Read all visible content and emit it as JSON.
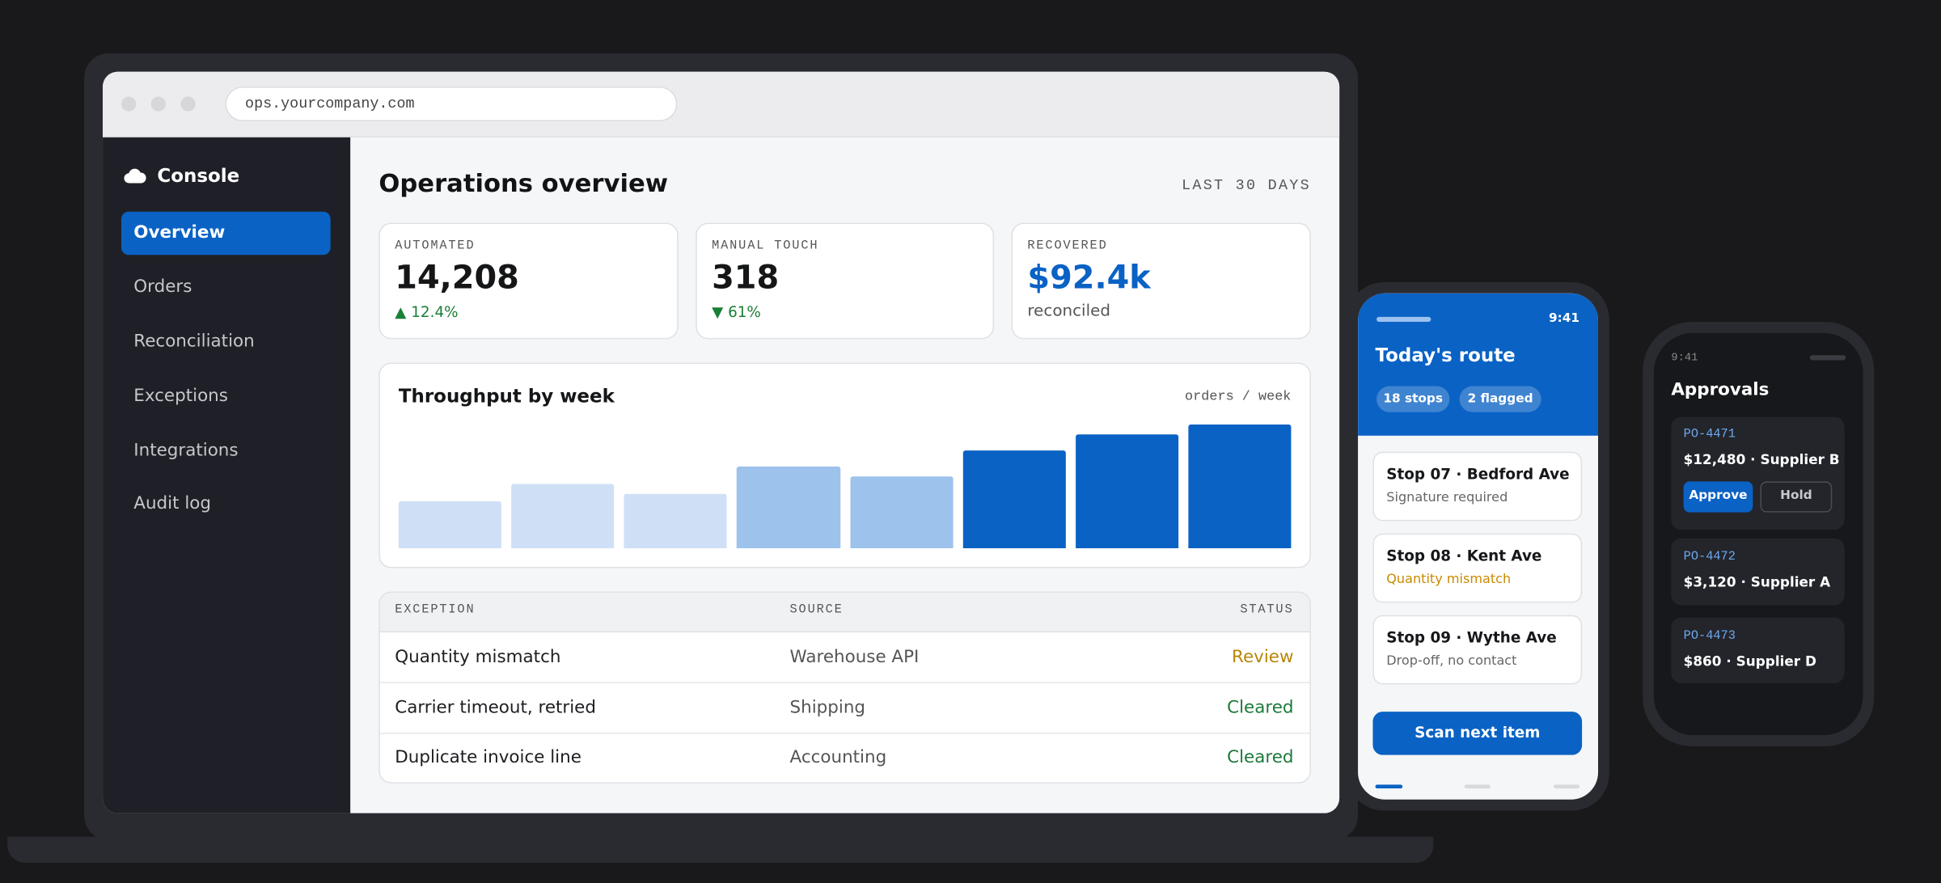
{
  "browser": {
    "url": "ops.yourcompany.com"
  },
  "sidebar": {
    "brand": "Console",
    "nav": [
      "Overview",
      "Orders",
      "Reconciliation",
      "Exceptions",
      "Integrations",
      "Audit log"
    ]
  },
  "header": {
    "title": "Operations overview",
    "period": "LAST 30 DAYS"
  },
  "kpis": [
    {
      "label": "AUTOMATED",
      "value": "14,208",
      "delta": "▲ 12.4%"
    },
    {
      "label": "MANUAL TOUCH",
      "value": "318",
      "delta": "▼ 61%"
    },
    {
      "label": "RECOVERED",
      "value": "$92.4k",
      "delta": "reconciled"
    }
  ],
  "throughput": {
    "type": "bar",
    "title": "Throughput by week",
    "unit": "orders / week",
    "values": [
      38,
      52,
      44,
      66,
      58,
      79,
      92,
      100
    ],
    "colors": [
      "#cfe0f6",
      "#cfe0f6",
      "#cfe0f6",
      "#9dc2ec",
      "#9dc2ec",
      "#0a62c4",
      "#0a62c4",
      "#0a62c4"
    ],
    "ylim": [
      0,
      100
    ]
  },
  "table": {
    "headers": [
      "EXCEPTION",
      "SOURCE",
      "STATUS"
    ],
    "rows": [
      [
        "Quantity mismatch",
        "Warehouse API",
        "Review"
      ],
      [
        "Carrier timeout, retried",
        "Shipping",
        "Cleared"
      ],
      [
        "Duplicate invoice line",
        "Accounting",
        "Cleared"
      ]
    ]
  },
  "phone": {
    "time": "9:41",
    "title": "Today's route",
    "chips": [
      "18 stops",
      "2 flagged"
    ],
    "stops": [
      {
        "title": "Stop 07 · Bedford Ave",
        "note": "Signature required"
      },
      {
        "title": "Stop 08 · Kent Ave",
        "note": "Quantity mismatch"
      },
      {
        "title": "Stop 09 · Wythe Ave",
        "note": "Drop-off, no contact"
      }
    ],
    "button": "Scan next item"
  },
  "watch": {
    "time": "9:41",
    "title": "Approvals",
    "items": [
      {
        "id": "PO-4471",
        "amount": "$12,480 · Supplier B"
      },
      {
        "id": "PO-4472",
        "amount": "$3,120 · Supplier A"
      },
      {
        "id": "PO-4473",
        "amount": "$860 · Supplier D"
      }
    ],
    "approve": "Approve",
    "hold": "Hold"
  }
}
